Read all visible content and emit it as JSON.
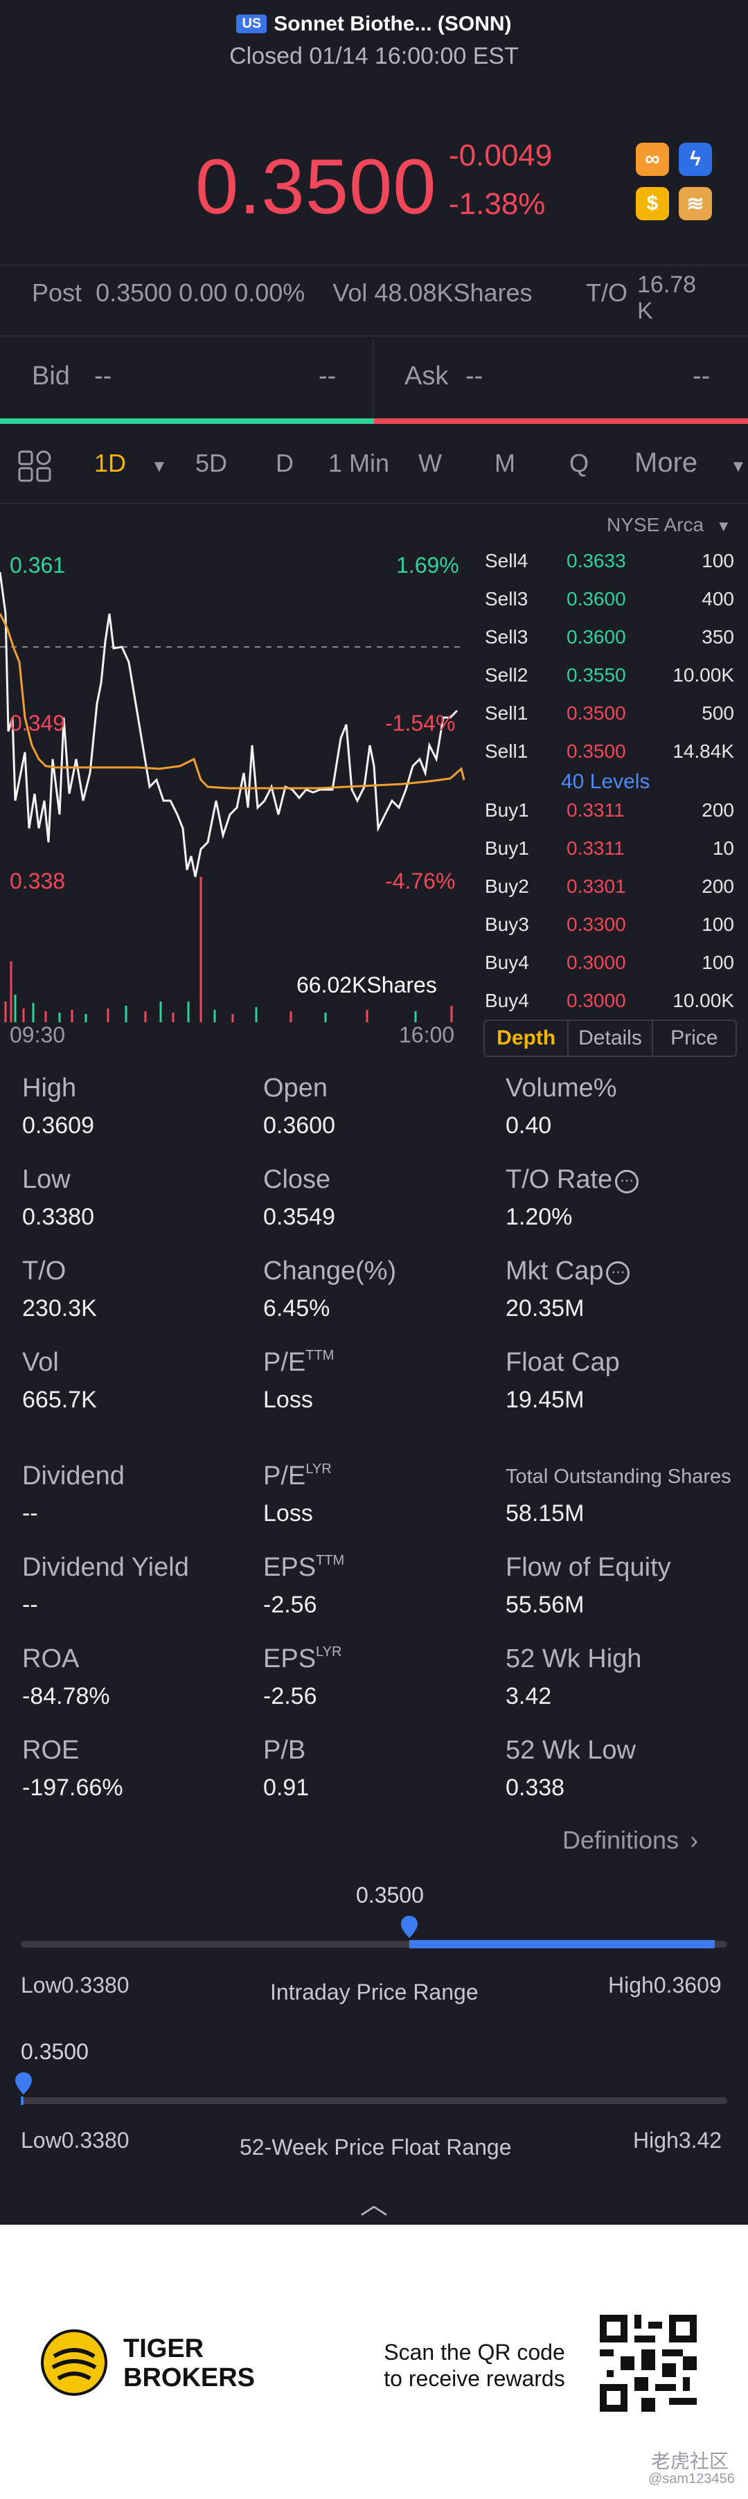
{
  "header": {
    "market_badge": "US",
    "title": "Sonnet Biothe... (SONN)",
    "status": "Closed 01/14 16:00:00 EST"
  },
  "quote": {
    "price": "0.3500",
    "change": "-0.0049",
    "change_pct": "-1.38%"
  },
  "post": {
    "label": "Post",
    "values": "0.3500 0.00 0.00%",
    "vol": "Vol 48.08KShares",
    "to_label": "T/O",
    "to_value": "16.78 K"
  },
  "bidask": {
    "bid_label": "Bid",
    "bid_price": "--",
    "bid_size": "--",
    "ask_label": "Ask",
    "ask_price": "--",
    "ask_size": "--"
  },
  "tabs": {
    "d1": "1D",
    "d5": "5D",
    "d": "D",
    "min1": "1 Min",
    "w": "W",
    "m": "M",
    "q": "Q",
    "more": "More"
  },
  "chart": {
    "high_price": "0.361",
    "high_pct": "1.69%",
    "mid_price": "0.349",
    "mid_pct": "-1.54%",
    "low_price": "0.338",
    "low_pct": "-4.76%",
    "volume": "66.02KShares",
    "time_start": "09:30",
    "time_end": "16:00"
  },
  "orderbook": {
    "exchange": "NYSE Arca",
    "sells": [
      {
        "level": "Sell4",
        "price": "0.3633",
        "qty": "100"
      },
      {
        "level": "Sell3",
        "price": "0.3600",
        "qty": "400"
      },
      {
        "level": "Sell3",
        "price": "0.3600",
        "qty": "350"
      },
      {
        "level": "Sell2",
        "price": "0.3550",
        "qty": "10.00K"
      },
      {
        "level": "Sell1",
        "price": "0.3500",
        "qty": "500"
      },
      {
        "level": "Sell1",
        "price": "0.3500",
        "qty": "14.84K"
      }
    ],
    "levels_label": "40 Levels",
    "buys": [
      {
        "level": "Buy1",
        "price": "0.3311",
        "qty": "200"
      },
      {
        "level": "Buy1",
        "price": "0.3311",
        "qty": "10"
      },
      {
        "level": "Buy2",
        "price": "0.3301",
        "qty": "200"
      },
      {
        "level": "Buy3",
        "price": "0.3300",
        "qty": "100"
      },
      {
        "level": "Buy4",
        "price": "0.3000",
        "qty": "100"
      },
      {
        "level": "Buy4",
        "price": "0.3000",
        "qty": "10.00K"
      }
    ],
    "tab_depth": "Depth",
    "tab_details": "Details",
    "tab_price": "Price"
  },
  "stats": [
    {
      "label": "High",
      "value": "0.3609"
    },
    {
      "label": "Open",
      "value": "0.3600"
    },
    {
      "label": "Volume%",
      "value": "0.40"
    },
    {
      "label": "Low",
      "value": "0.3380"
    },
    {
      "label": "Close",
      "value": "0.3549"
    },
    {
      "label": "T/O Rate",
      "value": "1.20%"
    },
    {
      "label": "T/O",
      "value": "230.3K"
    },
    {
      "label": "Change(%)",
      "value": "6.45%"
    },
    {
      "label": "Mkt Cap",
      "value": "20.35M"
    },
    {
      "label": "Vol",
      "value": "665.7K"
    },
    {
      "label": "P/E",
      "sup": "TTM",
      "value": "Loss"
    },
    {
      "label": "Float Cap",
      "value": "19.45M"
    },
    {
      "label": "Dividend",
      "value": "--"
    },
    {
      "label": "P/E",
      "sup": "LYR",
      "value": "Loss"
    },
    {
      "label": "Total Outstanding Shares",
      "value": "58.15M"
    },
    {
      "label": "Dividend Yield",
      "value": "--"
    },
    {
      "label": "EPS",
      "sup": "TTM",
      "value": "-2.56"
    },
    {
      "label": "Flow of Equity",
      "value": "55.56M"
    },
    {
      "label": "ROA",
      "value": "-84.78%"
    },
    {
      "label": "EPS",
      "sup": "LYR",
      "value": "-2.56"
    },
    {
      "label": "52 Wk High",
      "value": "3.42"
    },
    {
      "label": "ROE",
      "value": "-197.66%"
    },
    {
      "label": "P/B",
      "value": "0.91"
    },
    {
      "label": "52 Wk Low",
      "value": "0.338"
    }
  ],
  "definitions": "Definitions",
  "intraday": {
    "current": "0.3500",
    "low": "Low0.3380",
    "title": "Intraday Price Range",
    "high": "High0.3609",
    "position": 0.55
  },
  "week52": {
    "current": "0.3500",
    "low": "Low0.3380",
    "title": "52-Week Price Float Range",
    "high": "High3.42",
    "position": 0.004
  },
  "footer": {
    "brand_line1": "TIGER",
    "brand_line2": "BROKERS",
    "promo_line1": "Scan the QR code",
    "promo_line2": "to receive rewards",
    "watermark": "老虎社区",
    "watermark_user": "@sam123456"
  },
  "colors": {
    "up": "#2fd39a",
    "down": "#f0485a",
    "accent": "#f5b400",
    "link": "#4e8bf5"
  }
}
